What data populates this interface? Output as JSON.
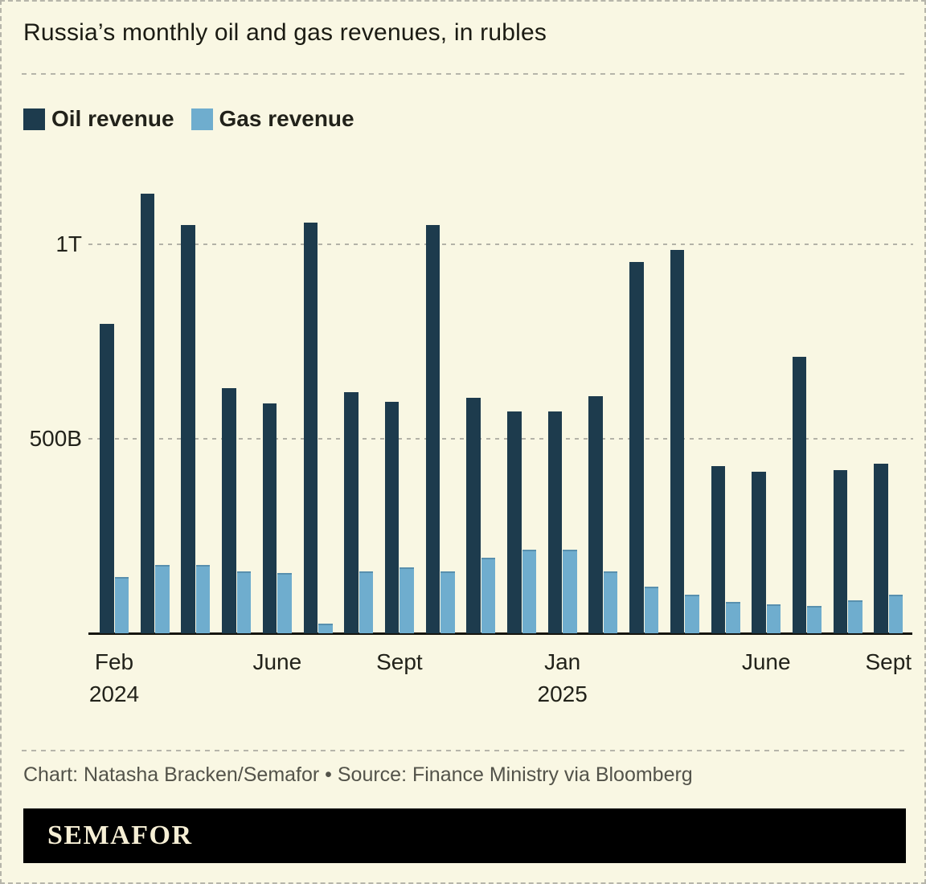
{
  "header": {
    "title": "Russia’s monthly oil and gas revenues, in rubles"
  },
  "legend": [
    {
      "label": "Oil revenue",
      "color": "#1d3b4d"
    },
    {
      "label": "Gas revenue",
      "color": "#6fadce"
    }
  ],
  "chart_data": {
    "type": "bar",
    "unit": "rubles",
    "title": "Russia’s monthly oil and gas revenues, in rubles",
    "categories": [
      "Feb 2024",
      "Mar 2024",
      "Apr 2024",
      "May 2024",
      "Jun 2024",
      "Jul 2024",
      "Aug 2024",
      "Sep 2024",
      "Oct 2024",
      "Nov 2024",
      "Dec 2024",
      "Jan 2025",
      "Feb 2025",
      "Mar 2025",
      "Apr 2025",
      "May 2025",
      "Jun 2025",
      "Jul 2025",
      "Aug 2025",
      "Sep 2025"
    ],
    "series": [
      {
        "name": "Oil revenue",
        "color": "#1d3b4d",
        "values_billions": [
          795,
          1130,
          1050,
          630,
          590,
          1055,
          620,
          595,
          1050,
          605,
          570,
          570,
          610,
          955,
          985,
          430,
          415,
          710,
          420,
          435
        ]
      },
      {
        "name": "Gas revenue",
        "color": "#6fadce",
        "values_billions": [
          145,
          175,
          175,
          160,
          155,
          25,
          160,
          170,
          160,
          195,
          215,
          215,
          160,
          120,
          100,
          80,
          75,
          70,
          85,
          100
        ]
      }
    ],
    "yticks": [
      {
        "label": "500B",
        "value_billions": 500
      },
      {
        "label": "1T",
        "value_billions": 1000
      }
    ],
    "ylim_billions": [
      0,
      1210
    ],
    "xticks": [
      {
        "index": 0,
        "label": "Feb",
        "year": "2024"
      },
      {
        "index": 4,
        "label": "June",
        "year": ""
      },
      {
        "index": 7,
        "label": "Sept",
        "year": ""
      },
      {
        "index": 11,
        "label": "Jan",
        "year": "2025"
      },
      {
        "index": 16,
        "label": "June",
        "year": ""
      },
      {
        "index": 19,
        "label": "Sept",
        "year": ""
      }
    ],
    "grid": "horizontal-dashed",
    "legend_position": "top-left"
  },
  "footer": {
    "credit": "Chart: Natasha Bracken/Semafor • Source: Finance Ministry via Bloomberg",
    "logo": "SEMAFOR"
  },
  "colors": {
    "background": "#f9f7e3",
    "oil": "#1d3b4d",
    "gas": "#6fadce",
    "grid": "#b6b5aa",
    "text": "#1e1e16",
    "muted_text": "#53534a",
    "logo_background": "#000000",
    "logo_text": "#f6efd5"
  }
}
